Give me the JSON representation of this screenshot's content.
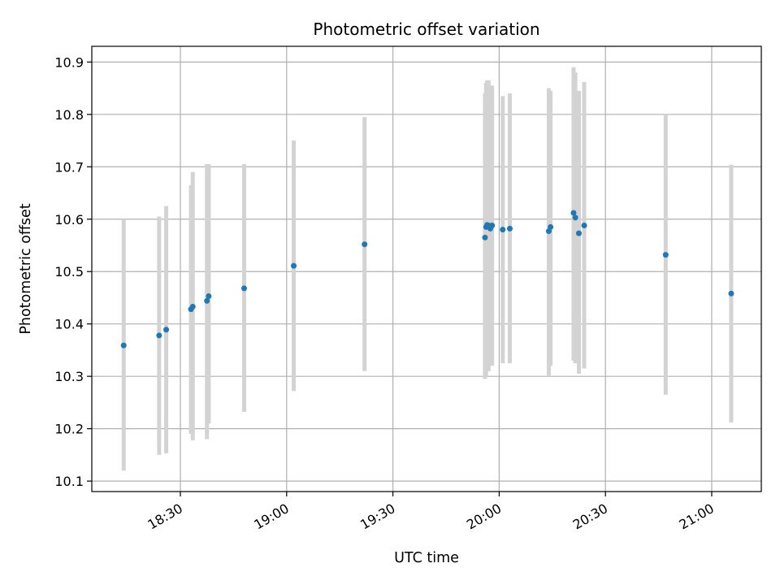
{
  "chart_data": {
    "type": "scatter",
    "title": "Photometric offset variation",
    "xlabel": "UTC time",
    "ylabel": "Photometric offset",
    "grid": true,
    "x_is_time": true,
    "xlim": [
      "18:05",
      "21:14"
    ],
    "ylim": [
      10.08,
      10.93
    ],
    "x_ticks": [
      "18:30",
      "19:00",
      "19:30",
      "20:00",
      "20:30",
      "21:00"
    ],
    "y_ticks": [
      "10.1",
      "10.2",
      "10.3",
      "10.4",
      "10.5",
      "10.6",
      "10.7",
      "10.8",
      "10.9"
    ],
    "series": [
      {
        "marker_color": "#1f77b4",
        "errorbar_color": "#d3d3d3",
        "points": [
          {
            "x": "18:14",
            "y": 10.359,
            "low": 10.12,
            "high": 10.6
          },
          {
            "x": "18:24",
            "y": 10.378,
            "low": 10.15,
            "high": 10.605
          },
          {
            "x": "18:26",
            "y": 10.389,
            "low": 10.153,
            "high": 10.625
          },
          {
            "x": "18:33",
            "y": 10.428,
            "low": 10.19,
            "high": 10.665
          },
          {
            "x": "18:33.5",
            "y": 10.433,
            "low": 10.178,
            "high": 10.69
          },
          {
            "x": "18:37.5",
            "y": 10.444,
            "low": 10.18,
            "high": 10.705
          },
          {
            "x": "18:38",
            "y": 10.453,
            "low": 10.21,
            "high": 10.705
          },
          {
            "x": "18:48",
            "y": 10.468,
            "low": 10.232,
            "high": 10.705
          },
          {
            "x": "19:02",
            "y": 10.511,
            "low": 10.272,
            "high": 10.75
          },
          {
            "x": "19:22",
            "y": 10.552,
            "low": 10.31,
            "high": 10.795
          },
          {
            "x": "19:56",
            "y": 10.565,
            "low": 10.295,
            "high": 10.84
          },
          {
            "x": "19:56.3",
            "y": 10.585,
            "low": 10.3,
            "high": 10.86
          },
          {
            "x": "19:56.6",
            "y": 10.589,
            "low": 10.315,
            "high": 10.865
          },
          {
            "x": "19:57",
            "y": 10.588,
            "low": 10.31,
            "high": 10.865
          },
          {
            "x": "19:57.5",
            "y": 10.582,
            "low": 10.325,
            "high": 10.855
          },
          {
            "x": "19:58",
            "y": 10.588,
            "low": 10.32,
            "high": 10.855
          },
          {
            "x": "20:01",
            "y": 10.58,
            "low": 10.325,
            "high": 10.835
          },
          {
            "x": "20:03",
            "y": 10.582,
            "low": 10.325,
            "high": 10.84
          },
          {
            "x": "20:14",
            "y": 10.577,
            "low": 10.3,
            "high": 10.85
          },
          {
            "x": "20:14.5",
            "y": 10.585,
            "low": 10.32,
            "high": 10.845
          },
          {
            "x": "20:21",
            "y": 10.612,
            "low": 10.33,
            "high": 10.89
          },
          {
            "x": "20:21.5",
            "y": 10.603,
            "low": 10.325,
            "high": 10.88
          },
          {
            "x": "20:22.5",
            "y": 10.573,
            "low": 10.305,
            "high": 10.845
          },
          {
            "x": "20:24",
            "y": 10.588,
            "low": 10.315,
            "high": 10.862
          },
          {
            "x": "20:47",
            "y": 10.532,
            "low": 10.265,
            "high": 10.8
          },
          {
            "x": "21:05.5",
            "y": 10.458,
            "low": 10.212,
            "high": 10.704
          }
        ]
      }
    ]
  }
}
